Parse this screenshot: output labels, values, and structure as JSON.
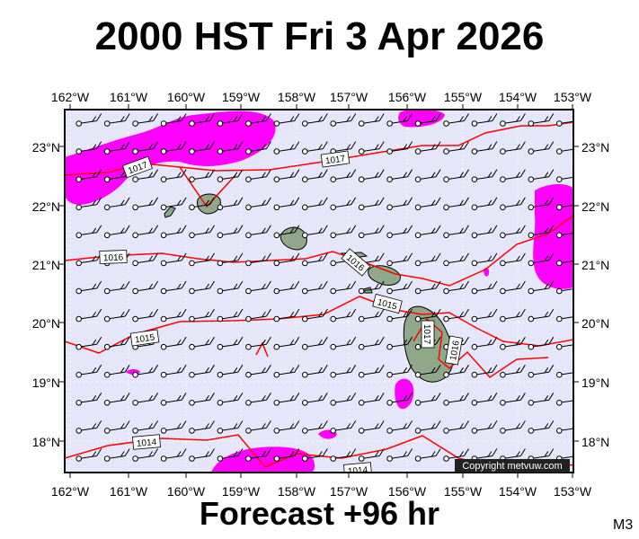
{
  "title": "2000 HST Fri 3 Apr 2026",
  "footer": "Forecast +96 hr",
  "model_label": "M3",
  "copyright": "Copyright metvuw.com",
  "map": {
    "lon_labels": [
      "162°W",
      "161°W",
      "160°W",
      "159°W",
      "158°W",
      "157°W",
      "156°W",
      "155°W",
      "154°W",
      "153°W"
    ],
    "lat_labels": [
      "23°N",
      "22°N",
      "21°N",
      "20°N",
      "19°N",
      "18°N"
    ],
    "isobar_labels": [
      "1017",
      "1017",
      "1016",
      "1016",
      "1015",
      "1015",
      "1014",
      "1014",
      "1017",
      "1016"
    ],
    "colors": {
      "ocean": "#e6e6fa",
      "rain": "#ff00ff",
      "isobar": "#ff0000",
      "land": "#8fa88a",
      "frame": "#000000"
    }
  }
}
